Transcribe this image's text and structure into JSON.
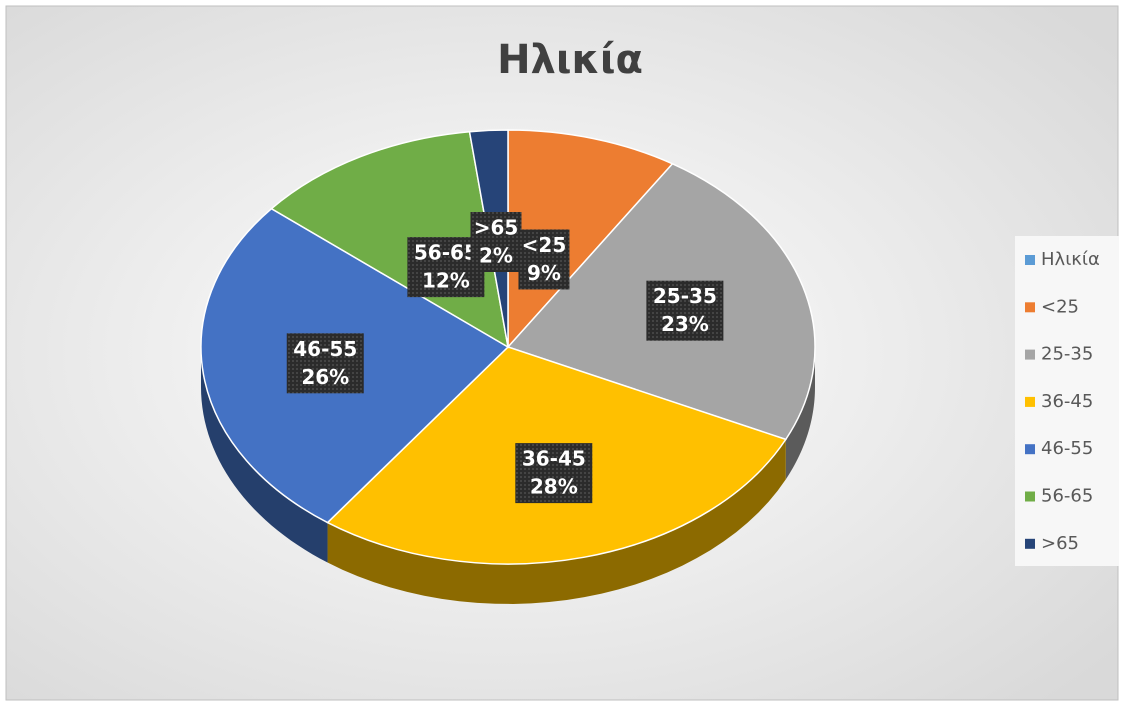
{
  "chart_data": {
    "type": "pie",
    "title": "Ηλικία",
    "categories": [
      "Ηλικία",
      "<25",
      "25-35",
      "36-45",
      "46-55",
      "56-65",
      ">65"
    ],
    "values": [
      null,
      9,
      23,
      28,
      26,
      12,
      2
    ],
    "value_labels": [
      null,
      "9%",
      "23%",
      "28%",
      "26%",
      "12%",
      "2%"
    ],
    "colors": [
      "#5b9bd5",
      "#ed7d31",
      "#a5a5a5",
      "#ffc000",
      "#4472c4",
      "#70ad47",
      "#264478"
    ],
    "legend": "right"
  }
}
